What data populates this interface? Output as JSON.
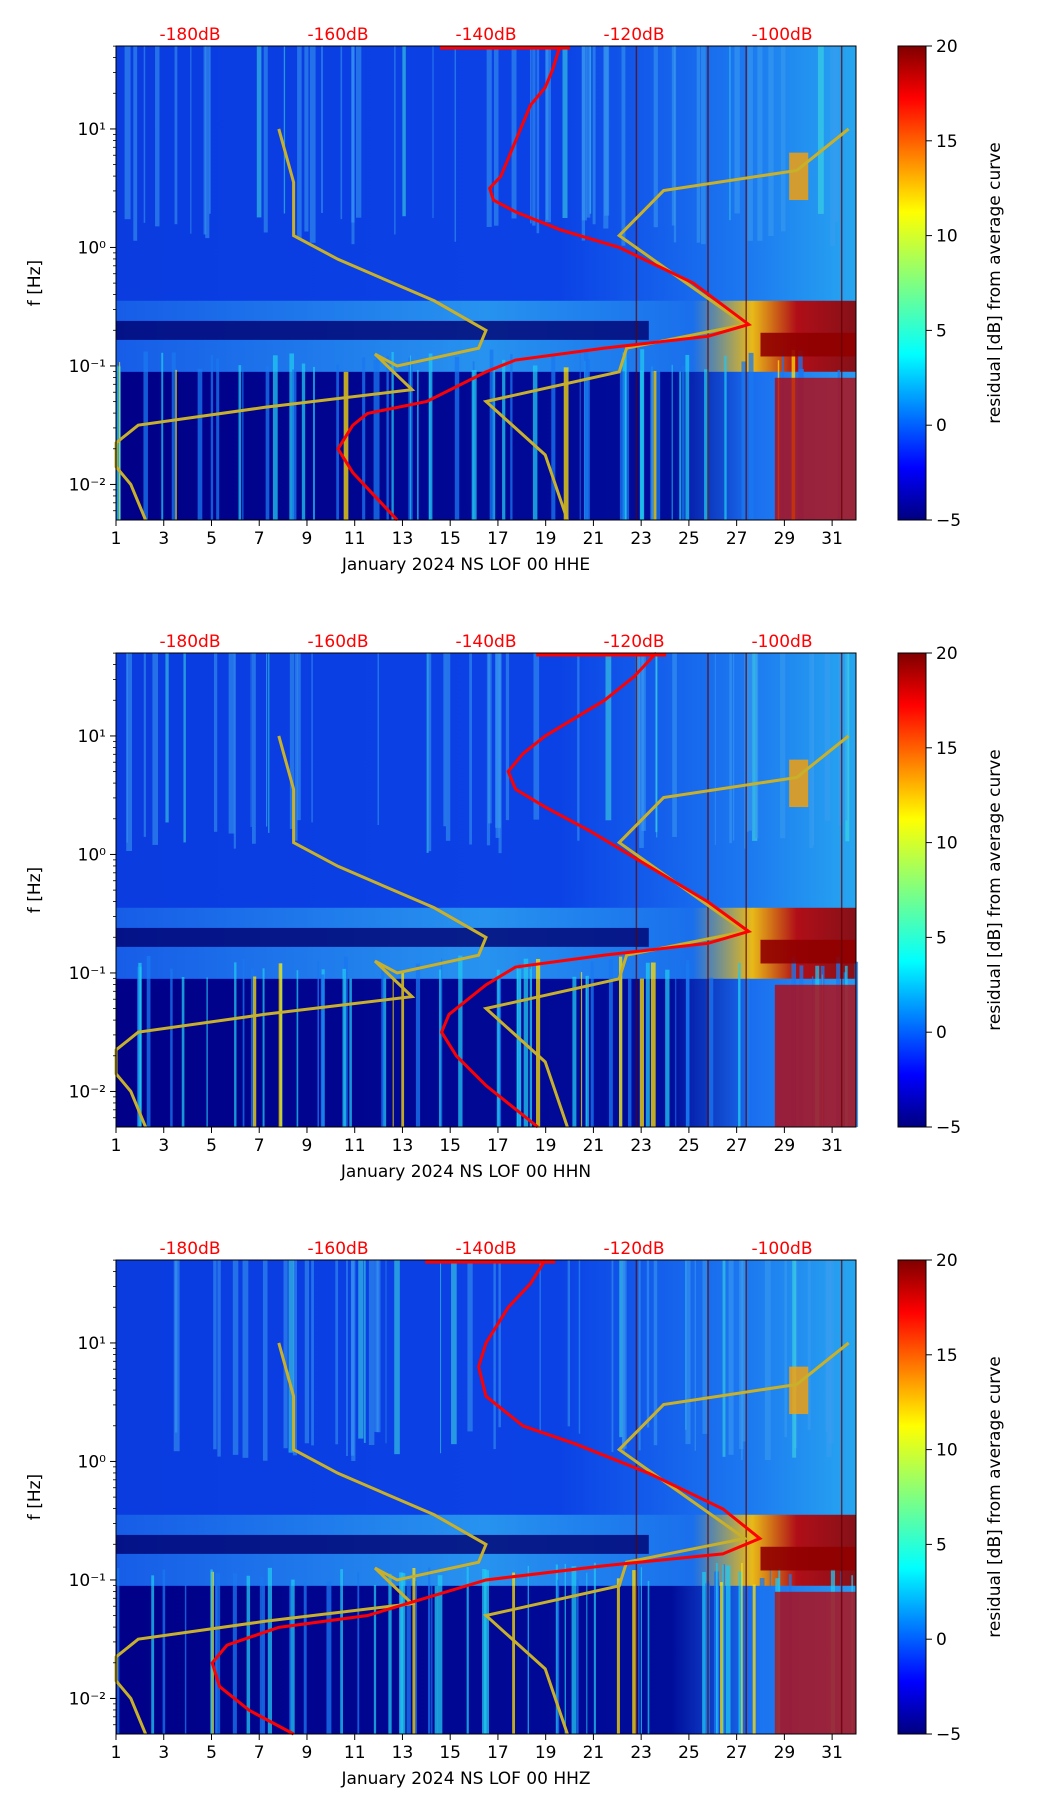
{
  "colors": {
    "overlay_red": "#ff0000",
    "model_curves": "#c8b02a",
    "colormap": [
      "#00007f",
      "#0000ff",
      "#0080ff",
      "#00ffff",
      "#80ff80",
      "#ffff00",
      "#ff8000",
      "#ff0000",
      "#7f0000"
    ]
  },
  "chart_data": [
    {
      "type": "heatmap",
      "xlabel": "January 2024 NS LOF 00 HHE",
      "ylabel": "f [Hz]",
      "x_ticks": [
        "1",
        "3",
        "5",
        "7",
        "9",
        "11",
        "13",
        "15",
        "17",
        "19",
        "21",
        "23",
        "25",
        "27",
        "29",
        "31"
      ],
      "y_ticks": [
        "10⁻²",
        "10⁻¹",
        "10⁰",
        "10¹"
      ],
      "top_labels": [
        "-180dB",
        "-160dB",
        "-140dB",
        "-120dB",
        "-100dB"
      ],
      "colorbar": {
        "label": "residual [dB] from average curve",
        "ticks": [
          "20",
          "15",
          "10",
          "5",
          "0",
          "−5"
        ],
        "range": [
          -5,
          20
        ]
      },
      "xlim": [
        1,
        32
      ],
      "ylim_log10": [
        -2.3,
        1.7
      ],
      "red_curve_db_vs_f": [
        [
          -130,
          1.7
        ],
        [
          -131,
          1.5
        ],
        [
          -132,
          1.35
        ],
        [
          -134,
          1.2
        ],
        [
          -136,
          0.9
        ],
        [
          -138,
          0.6
        ],
        [
          -139.5,
          0.5
        ],
        [
          -139,
          0.4
        ],
        [
          -136,
          0.3
        ],
        [
          -130,
          0.15
        ],
        [
          -122,
          0.0
        ],
        [
          -112,
          -0.3
        ],
        [
          -104.5,
          -0.65
        ],
        [
          -110,
          -0.75
        ],
        [
          -124,
          -0.85
        ],
        [
          -136,
          -0.95
        ],
        [
          -140,
          -1.05
        ],
        [
          -148,
          -1.3
        ],
        [
          -156,
          -1.4
        ],
        [
          -158,
          -1.5
        ],
        [
          -160,
          -1.7
        ],
        [
          -158,
          -1.9
        ],
        [
          -155,
          -2.1
        ],
        [
          -152,
          -2.3
        ]
      ]
    },
    {
      "type": "heatmap",
      "xlabel": "January 2024 NS LOF 00 HHN",
      "ylabel": "f [Hz]",
      "x_ticks": [
        "1",
        "3",
        "5",
        "7",
        "9",
        "11",
        "13",
        "15",
        "17",
        "19",
        "21",
        "23",
        "25",
        "27",
        "29",
        "31"
      ],
      "y_ticks": [
        "10⁻²",
        "10⁻¹",
        "10⁰",
        "10¹"
      ],
      "top_labels": [
        "-180dB",
        "-160dB",
        "-140dB",
        "-120dB",
        "-100dB"
      ],
      "colorbar": {
        "label": "residual [dB] from average curve",
        "ticks": [
          "20",
          "15",
          "10",
          "5",
          "0",
          "−5"
        ],
        "range": [
          -5,
          20
        ]
      },
      "xlim": [
        1,
        32
      ],
      "ylim_log10": [
        -2.3,
        1.7
      ],
      "red_curve_db_vs_f": [
        [
          -117,
          1.7
        ],
        [
          -120,
          1.5
        ],
        [
          -124,
          1.3
        ],
        [
          -128,
          1.15
        ],
        [
          -132,
          1.0
        ],
        [
          -135,
          0.85
        ],
        [
          -137,
          0.7
        ],
        [
          -136,
          0.55
        ],
        [
          -132,
          0.4
        ],
        [
          -126,
          0.2
        ],
        [
          -118,
          -0.1
        ],
        [
          -110,
          -0.4
        ],
        [
          -104.5,
          -0.65
        ],
        [
          -110,
          -0.75
        ],
        [
          -124,
          -0.85
        ],
        [
          -136,
          -0.95
        ],
        [
          -140,
          -1.1
        ],
        [
          -145,
          -1.35
        ],
        [
          -146,
          -1.5
        ],
        [
          -144,
          -1.7
        ],
        [
          -140,
          -1.95
        ],
        [
          -136,
          -2.15
        ],
        [
          -133,
          -2.3
        ]
      ]
    },
    {
      "type": "heatmap",
      "xlabel": "January 2024 NS LOF 00 HHZ",
      "ylabel": "f [Hz]",
      "x_ticks": [
        "1",
        "3",
        "5",
        "7",
        "9",
        "11",
        "13",
        "15",
        "17",
        "19",
        "21",
        "23",
        "25",
        "27",
        "29",
        "31"
      ],
      "y_ticks": [
        "10⁻²",
        "10⁻¹",
        "10⁰",
        "10¹"
      ],
      "top_labels": [
        "-180dB",
        "-160dB",
        "-140dB",
        "-120dB",
        "-100dB"
      ],
      "colorbar": {
        "label": "residual [dB] from average curve",
        "ticks": [
          "20",
          "15",
          "10",
          "5",
          "0",
          "−5"
        ],
        "range": [
          -5,
          20
        ]
      },
      "xlim": [
        1,
        32
      ],
      "ylim_log10": [
        -2.3,
        1.7
      ],
      "red_curve_db_vs_f": [
        [
          -132,
          1.7
        ],
        [
          -134,
          1.5
        ],
        [
          -137,
          1.3
        ],
        [
          -140,
          1.0
        ],
        [
          -141,
          0.8
        ],
        [
          -140,
          0.55
        ],
        [
          -135,
          0.3
        ],
        [
          -128,
          0.15
        ],
        [
          -118,
          -0.1
        ],
        [
          -108,
          -0.4
        ],
        [
          -103,
          -0.65
        ],
        [
          -108,
          -0.78
        ],
        [
          -124,
          -0.88
        ],
        [
          -140,
          -1.0
        ],
        [
          -156,
          -1.3
        ],
        [
          -168,
          -1.4
        ],
        [
          -175,
          -1.55
        ],
        [
          -177,
          -1.7
        ],
        [
          -176,
          -1.9
        ],
        [
          -172,
          -2.1
        ],
        [
          -166,
          -2.3
        ]
      ]
    }
  ]
}
